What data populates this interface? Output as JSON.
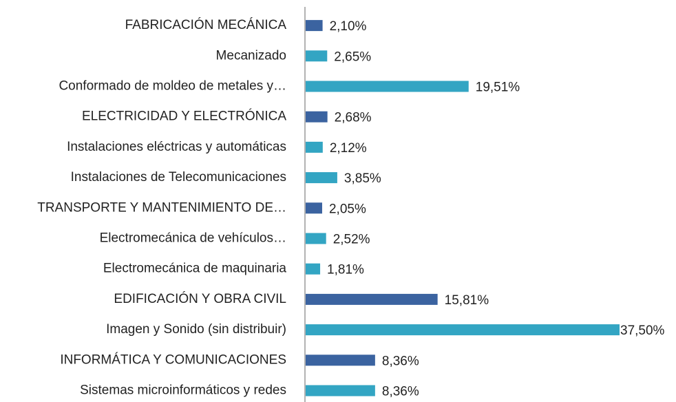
{
  "chart_data": {
    "type": "bar",
    "orientation": "horizontal",
    "categories": [
      "FABRICACIÓN MECÁNICA",
      "Mecanizado",
      "Conformado de moldeo de metales y…",
      "ELECTRICIDAD Y ELECTRÓNICA",
      "Instalaciones eléctricas y automáticas",
      "Instalaciones de Telecomunicaciones",
      "TRANSPORTE Y MANTENIMIENTO DE…",
      "Electromecánica de vehículos…",
      "Electromecánica de maquinaria",
      "EDIFICACIÓN Y OBRA CIVIL",
      "Imagen y Sonido (sin distribuir)",
      "INFORMÁTICA Y COMUNICACIONES",
      "Sistemas microinformáticos y redes"
    ],
    "values": [
      2.1,
      2.65,
      19.51,
      2.68,
      2.12,
      3.85,
      2.05,
      2.52,
      1.81,
      15.81,
      37.5,
      8.36,
      8.36
    ],
    "value_labels": [
      "2,10%",
      "2,65%",
      "19,51%",
      "2,68%",
      "2,12%",
      "3,85%",
      "2,05%",
      "2,52%",
      "1,81%",
      "15,81%",
      "37,50%",
      "8,36%",
      "8,36%"
    ],
    "colors": [
      "#3b63a0",
      "#33a5c3",
      "#33a5c3",
      "#3b63a0",
      "#33a5c3",
      "#33a5c3",
      "#3b63a0",
      "#33a5c3",
      "#33a5c3",
      "#3b63a0",
      "#33a5c3",
      "#3b63a0",
      "#33a5c3"
    ]
  }
}
